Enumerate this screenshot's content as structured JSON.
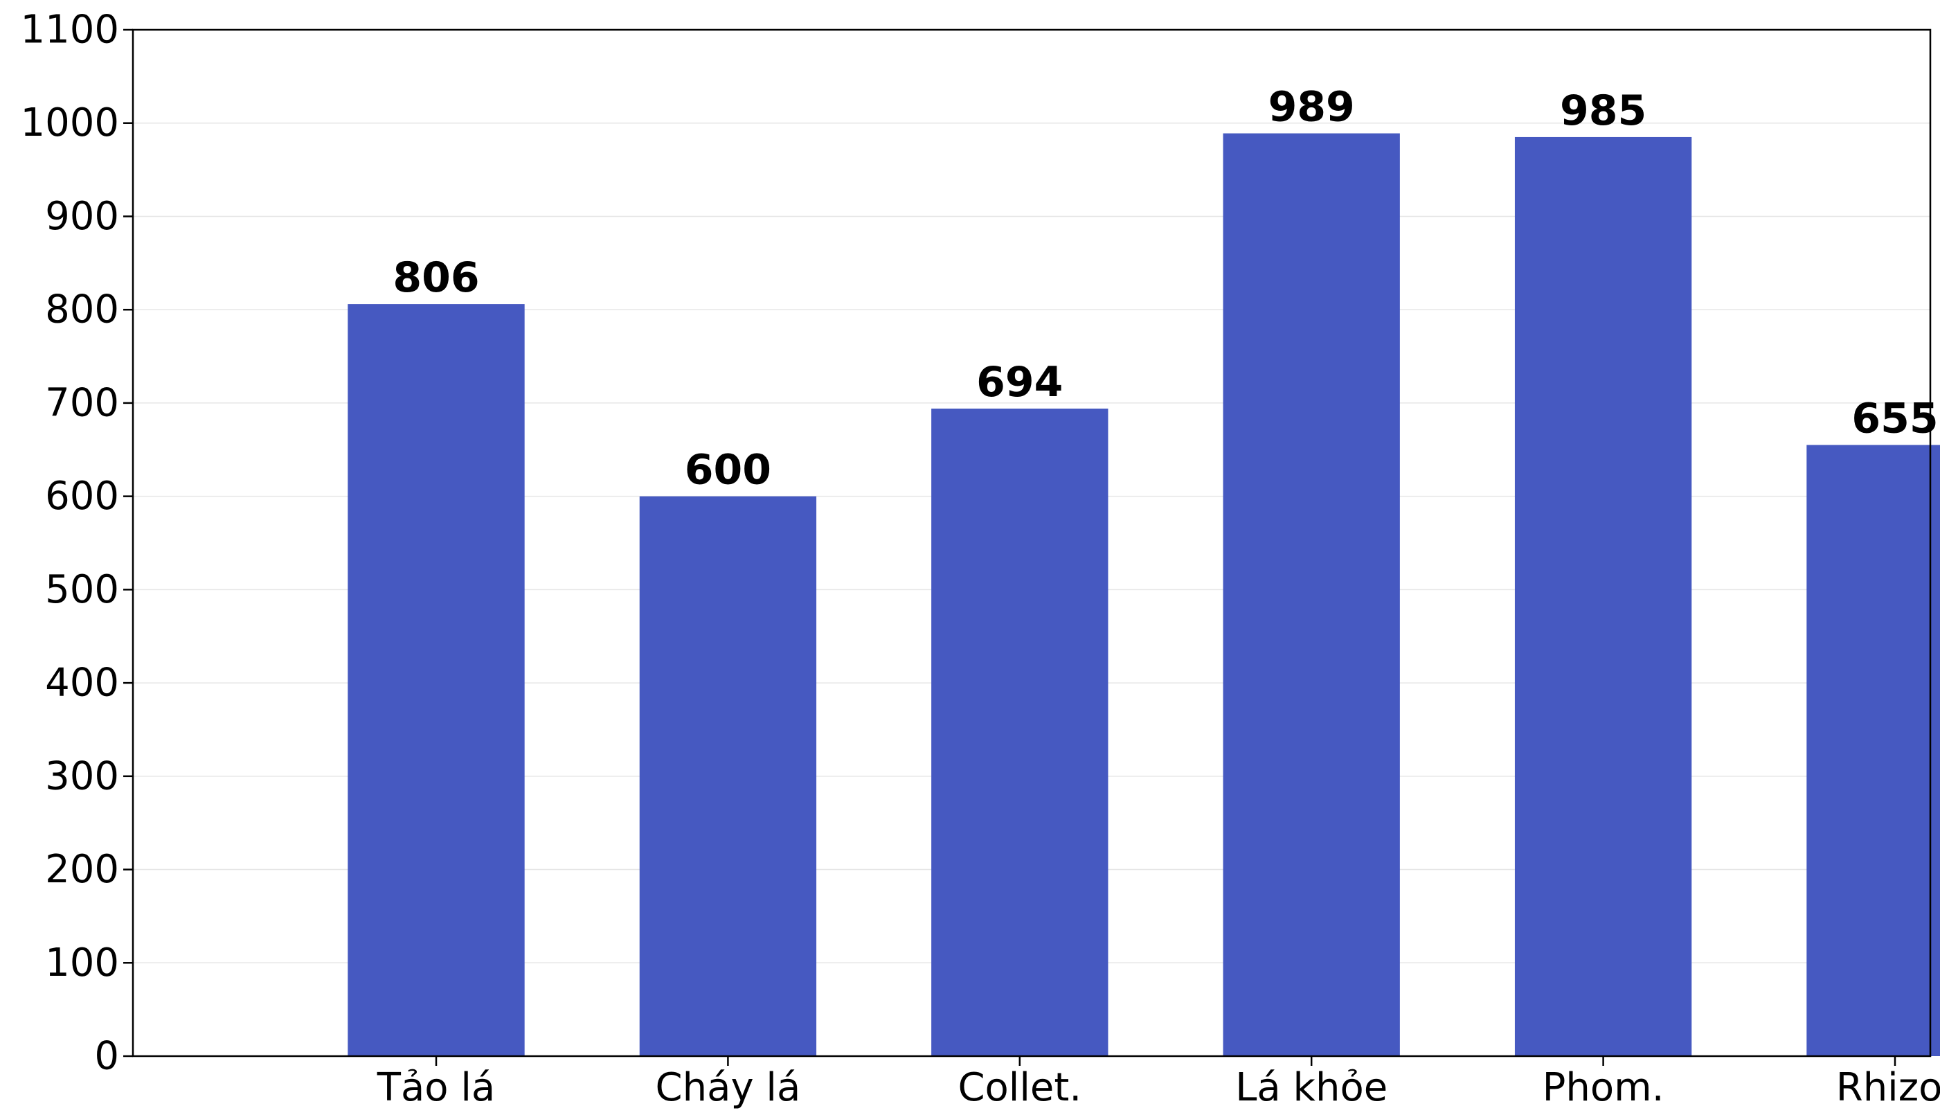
{
  "chart_data": {
    "type": "bar",
    "title": "",
    "xlabel": "",
    "ylabel": "",
    "categories": [
      "Tảo lá",
      "Cháy lá",
      "Collet.",
      "Lá khỏe",
      "Phom.",
      "Rhizo."
    ],
    "values": [
      806,
      600,
      694,
      989,
      985,
      655
    ],
    "ylim": [
      0,
      1100
    ],
    "yticks": [
      0,
      100,
      200,
      300,
      400,
      500,
      600,
      700,
      800,
      900,
      1000,
      1100
    ],
    "grid": "horizontal",
    "legend": "none",
    "bar_color": "#4659C1",
    "data_labels": true
  }
}
